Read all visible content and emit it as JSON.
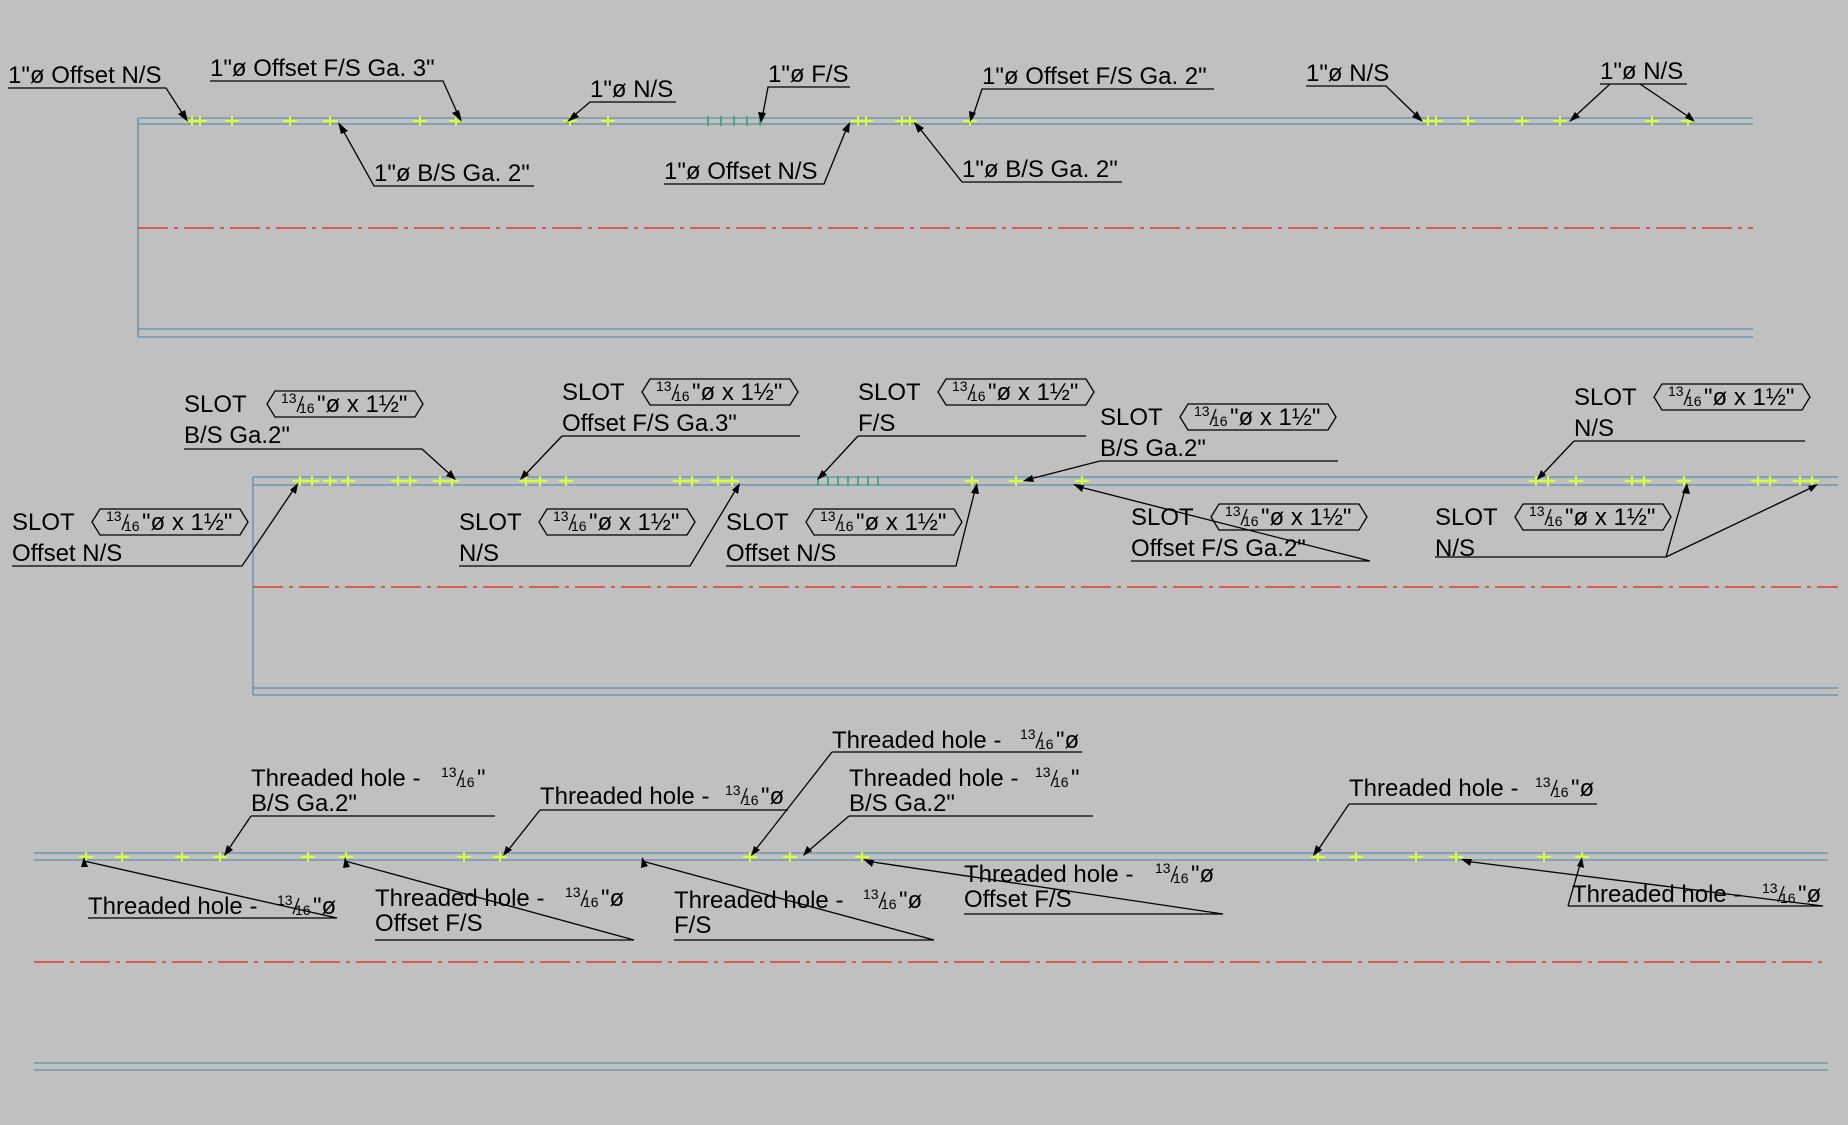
{
  "strip1": {
    "callouts": [
      {
        "text": "1\"ø Offset N/S"
      },
      {
        "text": "1\"ø Offset F/S Ga. 3\""
      },
      {
        "text": "1\"ø N/S"
      },
      {
        "text": "1\"ø F/S"
      },
      {
        "text": "1\"ø Offset F/S Ga. 2\""
      },
      {
        "text": "1\"ø N/S"
      },
      {
        "text": "1\"ø N/S"
      },
      {
        "text": "1\"ø B/S Ga. 2\""
      },
      {
        "text": "1\"ø Offset N/S"
      },
      {
        "text": "1\"ø B/S Ga. 2\""
      }
    ]
  },
  "strip2": {
    "size_tag": {
      "num": "13",
      "den": "16",
      "text": "\"ø x 1½\""
    },
    "callouts": [
      {
        "kind": "SLOT",
        "line2": "B/S Ga.2\""
      },
      {
        "kind": "SLOT",
        "line2": "Offset F/S Ga.3\""
      },
      {
        "kind": "SLOT",
        "line2": "F/S"
      },
      {
        "kind": "SLOT",
        "line2": "B/S Ga.2\""
      },
      {
        "kind": "SLOT",
        "line2": "N/S"
      },
      {
        "kind": "SLOT",
        "line2": "Offset N/S"
      },
      {
        "kind": "SLOT",
        "line2": "N/S"
      },
      {
        "kind": "SLOT",
        "line2": "Offset N/S"
      },
      {
        "kind": "SLOT",
        "line2": "Offset F/S Ga.2\""
      },
      {
        "kind": "SLOT",
        "line2": "N/S"
      }
    ]
  },
  "strip3": {
    "label": "Threaded hole -",
    "frac": {
      "num": "13",
      "den": "16"
    },
    "callouts": [
      {
        "suffix": "\"",
        "line2": "B/S Ga.2\""
      },
      {
        "suffix": "\"ø",
        "line2": ""
      },
      {
        "suffix": "\"ø",
        "line2": ""
      },
      {
        "suffix": "\"",
        "line2": "B/S Ga.2\""
      },
      {
        "suffix": "\"ø",
        "line2": ""
      },
      {
        "suffix": "\"ø",
        "line2": ""
      },
      {
        "suffix": "\"ø",
        "line2": "Offset F/S"
      },
      {
        "suffix": "\"ø",
        "line2": "F/S"
      },
      {
        "suffix": "\"ø",
        "line2": "Offset F/S"
      },
      {
        "suffix": "\"ø",
        "line2": ""
      }
    ]
  },
  "colors": {
    "background": "#c0c0c0",
    "part_outline": "#5b8fa8",
    "center_line": "#e03a2a",
    "hole_marks": "#d8ff38"
  }
}
